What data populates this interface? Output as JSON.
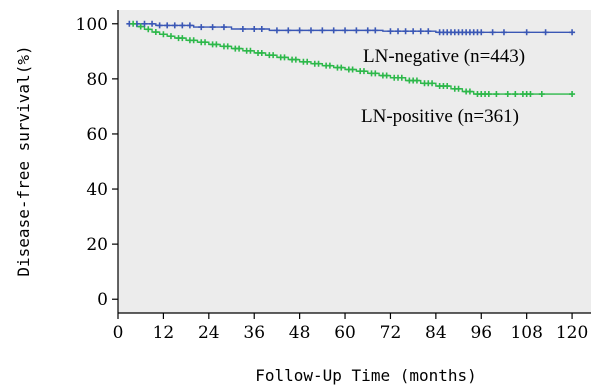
{
  "chart_data": {
    "type": "line",
    "subtype": "kaplan-meier",
    "title": "",
    "xlabel": "Follow-Up Time (months)",
    "ylabel": "Disease-free survival(%)",
    "xlim": [
      0,
      125
    ],
    "ylim": [
      -5,
      105
    ],
    "xticks": [
      0,
      12,
      24,
      36,
      48,
      60,
      72,
      84,
      96,
      108,
      120
    ],
    "yticks": [
      0,
      20,
      40,
      60,
      80,
      100
    ],
    "grid": false,
    "plot_background": "#ececec",
    "series": [
      {
        "name": "LN-negative (n=443)",
        "color": "#3a57b5",
        "x": [
          3,
          10,
          20,
          30,
          40,
          70,
          84,
          120
        ],
        "y": [
          100,
          99.4,
          98.8,
          98.1,
          97.6,
          97.3,
          96.9,
          96.9
        ],
        "censored": [
          [
            3,
            100
          ],
          [
            5,
            100
          ],
          [
            7,
            100
          ],
          [
            9,
            100
          ],
          [
            11,
            99.4
          ],
          [
            13,
            99.4
          ],
          [
            15,
            99.4
          ],
          [
            17,
            99.4
          ],
          [
            19,
            99.4
          ],
          [
            22,
            98.8
          ],
          [
            25,
            98.8
          ],
          [
            28,
            98.8
          ],
          [
            33,
            98.1
          ],
          [
            36,
            98.1
          ],
          [
            38,
            98.1
          ],
          [
            42,
            97.6
          ],
          [
            45,
            97.6
          ],
          [
            48,
            97.6
          ],
          [
            51,
            97.6
          ],
          [
            54,
            97.6
          ],
          [
            57,
            97.6
          ],
          [
            60,
            97.6
          ],
          [
            63,
            97.6
          ],
          [
            66,
            97.6
          ],
          [
            68,
            97.6
          ],
          [
            72,
            97.3
          ],
          [
            74,
            97.3
          ],
          [
            76,
            97.3
          ],
          [
            78,
            97.3
          ],
          [
            80,
            97.3
          ],
          [
            82,
            97.3
          ],
          [
            85,
            96.9
          ],
          [
            86,
            96.9
          ],
          [
            87,
            96.9
          ],
          [
            88,
            96.9
          ],
          [
            89,
            96.9
          ],
          [
            90,
            96.9
          ],
          [
            91,
            96.9
          ],
          [
            92,
            96.9
          ],
          [
            93,
            96.9
          ],
          [
            94,
            96.9
          ],
          [
            95,
            96.9
          ],
          [
            96,
            96.9
          ],
          [
            99,
            96.9
          ],
          [
            102,
            96.9
          ],
          [
            108,
            96.9
          ],
          [
            113,
            96.9
          ],
          [
            120,
            96.9
          ]
        ]
      },
      {
        "name": "LN-positive (n=361)",
        "color": "#2db84a",
        "x": [
          3,
          5,
          7,
          9,
          11,
          13,
          15,
          18,
          21,
          24,
          27,
          30,
          33,
          36,
          39,
          42,
          45,
          48,
          51,
          54,
          57,
          60,
          63,
          66,
          69,
          72,
          76,
          80,
          84,
          88,
          91,
          94,
          120
        ],
        "y": [
          100,
          99,
          98,
          97,
          96.2,
          95.5,
          94.8,
          94,
          93.3,
          92.5,
          91.8,
          91,
          90.2,
          89.4,
          88.6,
          87.8,
          87,
          86.2,
          85.5,
          84.8,
          84.1,
          83.4,
          82.8,
          82,
          81.2,
          80.4,
          79.4,
          78.4,
          77.4,
          76.4,
          75.4,
          74.5,
          74.5
        ],
        "censored": [
          [
            4,
            100
          ],
          [
            6,
            99
          ],
          [
            8,
            98
          ],
          [
            10,
            97
          ],
          [
            12,
            96.2
          ],
          [
            14,
            95.5
          ],
          [
            16,
            94.8
          ],
          [
            17,
            94.8
          ],
          [
            19,
            94
          ],
          [
            20,
            94
          ],
          [
            22,
            93.3
          ],
          [
            23,
            93.3
          ],
          [
            25,
            92.5
          ],
          [
            26,
            92.5
          ],
          [
            28,
            91.8
          ],
          [
            29,
            91.8
          ],
          [
            31,
            91
          ],
          [
            32,
            91
          ],
          [
            34,
            90.2
          ],
          [
            35,
            90.2
          ],
          [
            37,
            89.4
          ],
          [
            38,
            89.4
          ],
          [
            40,
            88.6
          ],
          [
            41,
            88.6
          ],
          [
            43,
            87.8
          ],
          [
            44,
            87.8
          ],
          [
            46,
            87
          ],
          [
            47,
            87
          ],
          [
            49,
            86.2
          ],
          [
            50,
            86.2
          ],
          [
            52,
            85.5
          ],
          [
            53,
            85.5
          ],
          [
            55,
            84.8
          ],
          [
            56,
            84.8
          ],
          [
            58,
            84.1
          ],
          [
            59,
            84.1
          ],
          [
            61,
            83.4
          ],
          [
            62,
            83.4
          ],
          [
            64,
            82.8
          ],
          [
            65,
            82.8
          ],
          [
            67,
            82
          ],
          [
            68,
            82
          ],
          [
            70,
            81.2
          ],
          [
            71,
            81.2
          ],
          [
            73,
            80.4
          ],
          [
            74,
            80.4
          ],
          [
            75,
            80.4
          ],
          [
            77,
            79.4
          ],
          [
            78,
            79.4
          ],
          [
            79,
            79.4
          ],
          [
            81,
            78.4
          ],
          [
            82,
            78.4
          ],
          [
            83,
            78.4
          ],
          [
            85,
            77.4
          ],
          [
            86,
            77.4
          ],
          [
            87,
            77.4
          ],
          [
            89,
            76.4
          ],
          [
            90,
            76.4
          ],
          [
            92,
            75.4
          ],
          [
            93,
            75.4
          ],
          [
            95,
            74.5
          ],
          [
            96,
            74.5
          ],
          [
            97,
            74.5
          ],
          [
            98,
            74.5
          ],
          [
            100,
            74.5
          ],
          [
            103,
            74.5
          ],
          [
            105,
            74.5
          ],
          [
            107,
            74.5
          ],
          [
            108,
            74.5
          ],
          [
            109,
            74.5
          ],
          [
            112,
            74.5
          ],
          [
            120,
            74.5
          ]
        ]
      }
    ],
    "annotations": [
      {
        "series": 0,
        "text": "LN-negative (n=443)"
      },
      {
        "series": 1,
        "text": "LN-positive (n=361)"
      }
    ]
  }
}
